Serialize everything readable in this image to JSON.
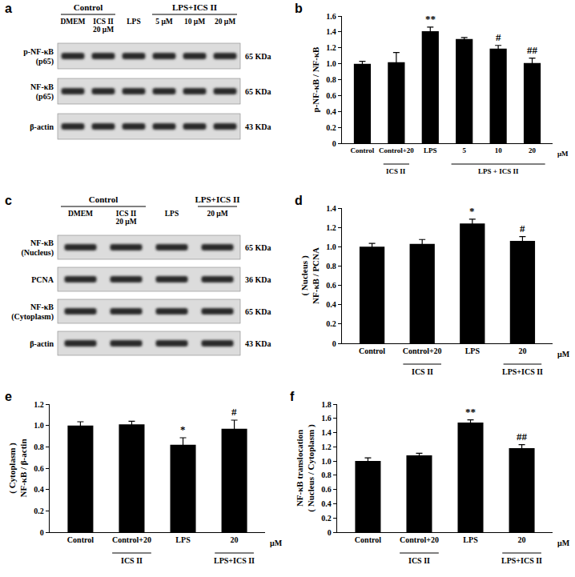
{
  "chart_data": [
    {
      "panel": "b",
      "type": "bar",
      "color": "#000000",
      "categories": [
        "Control",
        "Control+20",
        "LPS",
        "5",
        "10",
        "20"
      ],
      "values": [
        1.0,
        1.02,
        1.41,
        1.31,
        1.19,
        1.01
      ],
      "errors": [
        0.03,
        0.12,
        0.05,
        0.02,
        0.04,
        0.06
      ],
      "significance": [
        null,
        null,
        "**",
        null,
        "#",
        "##"
      ],
      "groups": [
        {
          "text": "ICS II",
          "from": 1,
          "to": 1
        },
        {
          "text": "LPS + ICS II",
          "from": 3,
          "to": 5
        }
      ],
      "unit_label": "μM",
      "ytitle": [
        "p-NF-κB / NF-κB"
      ],
      "ylim": [
        0,
        1.6
      ],
      "yticks": [
        0,
        0.2,
        0.4,
        0.6,
        0.8,
        {
          "value": 1,
          "label": "1.0"
        },
        1.2,
        1.4,
        1.6
      ]
    },
    {
      "panel": "d",
      "type": "bar",
      "color": "#000000",
      "categories": [
        "Control",
        "Control+20",
        "LPS",
        "20"
      ],
      "values": [
        1.0,
        1.03,
        1.24,
        1.06
      ],
      "errors": [
        0.035,
        0.045,
        0.045,
        0.045
      ],
      "significance": [
        null,
        null,
        "*",
        "#"
      ],
      "groups": [
        {
          "text": "ICS II",
          "from": 1,
          "to": 1
        },
        {
          "text": "LPS+ICS II",
          "from": 3,
          "to": 3
        }
      ],
      "unit_label": "μM",
      "ytitle": [
        "( Nucleus )",
        "NF-κB / PCNA"
      ],
      "ylim": [
        0,
        1.4
      ],
      "yticks": [
        0,
        0.2,
        0.4,
        0.6,
        0.8,
        {
          "value": 1,
          "label": "1.0"
        },
        1.2,
        1.4
      ]
    },
    {
      "panel": "e",
      "type": "bar",
      "color": "#000000",
      "categories": [
        "Control",
        "Control+20",
        "LPS",
        "20"
      ],
      "values": [
        1.0,
        1.01,
        0.82,
        0.97
      ],
      "errors": [
        0.035,
        0.03,
        0.065,
        0.08
      ],
      "significance": [
        null,
        null,
        "*",
        "#"
      ],
      "groups": [
        {
          "text": "ICS II",
          "from": 1,
          "to": 1
        },
        {
          "text": "LPS+ICS II",
          "from": 3,
          "to": 3
        }
      ],
      "unit_label": "μM",
      "ytitle": [
        "( Cytoplasm )",
        "NF-κB / β-actin"
      ],
      "ylim": [
        0,
        1.2
      ],
      "yticks": [
        0,
        0.2,
        0.4,
        0.6,
        0.8,
        {
          "value": 1,
          "label": "1.0"
        },
        1.2
      ]
    },
    {
      "panel": "f",
      "type": "bar",
      "color": "#000000",
      "categories": [
        "Control",
        "Control+20",
        "LPS",
        "20"
      ],
      "values": [
        1.0,
        1.08,
        1.54,
        1.18
      ],
      "errors": [
        0.045,
        0.03,
        0.04,
        0.05
      ],
      "significance": [
        null,
        null,
        "**",
        "##"
      ],
      "groups": [
        {
          "text": "ICS II",
          "from": 1,
          "to": 1
        },
        {
          "text": "LPS+ICS II",
          "from": 3,
          "to": 3
        }
      ],
      "unit_label": "μM",
      "ytitle": [
        "NF-κB translocation",
        "( Nucleus / Cytoplasm )"
      ],
      "ylim": [
        0,
        1.8
      ],
      "yticks": [
        0,
        0.2,
        0.4,
        0.6,
        0.8,
        {
          "value": 1,
          "label": "1.0"
        },
        1.2,
        1.4,
        1.6,
        1.8
      ]
    }
  ],
  "blots": [
    {
      "panel": "a",
      "groups": [
        {
          "text": "Control",
          "from": 0,
          "to": 1
        },
        {
          "text": "LPS+ICS II",
          "from": 3,
          "to": 5
        }
      ],
      "lanes": [
        [
          "DMEM"
        ],
        [
          "ICS II",
          "20 μM"
        ],
        [
          "LPS"
        ],
        [
          "5 μM"
        ],
        [
          "10 μM"
        ],
        [
          "20 μM"
        ]
      ],
      "rows": [
        {
          "label": [
            "p-NF-κB",
            "(p65)"
          ],
          "size": "65 KDa"
        },
        {
          "label": [
            "NF-κB",
            "(p65)"
          ],
          "size": "65 KDa"
        },
        {
          "label": [
            "β-actin"
          ],
          "size": "43 KDa"
        }
      ]
    },
    {
      "panel": "c",
      "groups": [
        {
          "text": "Control",
          "from": 0,
          "to": 1
        },
        {
          "text": "LPS+ICS II",
          "from": 3,
          "to": 3
        }
      ],
      "lanes": [
        [
          "DMEM"
        ],
        [
          "ICS II",
          "20 μM"
        ],
        [
          "LPS"
        ],
        [
          "20 μM"
        ]
      ],
      "rows": [
        {
          "label": [
            "NF-κB",
            "(Nucleus)"
          ],
          "size": "65 KDa"
        },
        {
          "label": [
            "PCNA"
          ],
          "size": "36 KDa"
        },
        {
          "label": [
            "NF-κB",
            "(Cytoplasm)"
          ],
          "size": "65 KDa"
        },
        {
          "label": [
            "β-actin"
          ],
          "size": "43 KDa"
        }
      ]
    }
  ]
}
